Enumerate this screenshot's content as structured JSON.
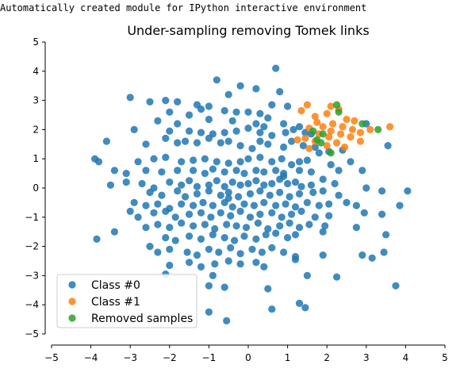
{
  "page": {
    "suptitle": "Automatically created module for IPython interactive environment"
  },
  "chart_data": {
    "type": "scatter",
    "title": "Under-sampling removing Tomek links",
    "xlabel": "",
    "ylabel": "",
    "xlim": [
      -5,
      5
    ],
    "ylim": [
      -5,
      5
    ],
    "xticks": [
      -5,
      -4,
      -3,
      -2,
      -1,
      0,
      1,
      2,
      3,
      4,
      5
    ],
    "yticks": [
      -5,
      -4,
      -3,
      -2,
      -1,
      0,
      1,
      2,
      3,
      4,
      5
    ],
    "xtick_labels": [
      "−5",
      "−4",
      "−3",
      "−2",
      "−1",
      "0",
      "1",
      "2",
      "3",
      "4",
      "5"
    ],
    "ytick_labels": [
      "−5",
      "−4",
      "−3",
      "−2",
      "−1",
      "0",
      "1",
      "2",
      "3",
      "4",
      "5"
    ],
    "grid": false,
    "legend_position": "lower-left",
    "spines": "left-bottom-offset",
    "series": [
      {
        "name": "Class #0",
        "color": "#1f77b4",
        "points": [
          [
            0.7,
            4.1
          ],
          [
            -0.8,
            3.7
          ],
          [
            -0.2,
            3.5
          ],
          [
            0.2,
            3.4
          ],
          [
            -0.5,
            3.2
          ],
          [
            0.8,
            3.3
          ],
          [
            -3,
            3.1
          ],
          [
            -2.5,
            2.95
          ],
          [
            -2.1,
            3.0
          ],
          [
            -1.8,
            2.95
          ],
          [
            -1.3,
            2.85
          ],
          [
            -1.2,
            2.7
          ],
          [
            -1.0,
            2.8
          ],
          [
            -0.6,
            2.65
          ],
          [
            0.0,
            2.6
          ],
          [
            0.3,
            2.55
          ],
          [
            -0.3,
            2.6
          ],
          [
            0.6,
            2.85
          ],
          [
            1.0,
            2.8
          ],
          [
            -2.0,
            2.6
          ],
          [
            -1.5,
            2.5
          ],
          [
            -2.3,
            2.3
          ],
          [
            -1.8,
            2.2
          ],
          [
            -1.0,
            2.35
          ],
          [
            -0.4,
            2.3
          ],
          [
            0.2,
            2.2
          ],
          [
            0.4,
            2.1
          ],
          [
            0.5,
            2.4
          ],
          [
            0.9,
            2.2
          ],
          [
            1.3,
            2.1
          ],
          [
            -2.9,
            2.0
          ],
          [
            -2.0,
            1.95
          ],
          [
            -1.5,
            1.95
          ],
          [
            -1.2,
            1.9
          ],
          [
            -0.9,
            1.85
          ],
          [
            -0.6,
            1.9
          ],
          [
            -0.3,
            1.95
          ],
          [
            0.0,
            2.05
          ],
          [
            0.3,
            1.9
          ],
          [
            0.6,
            1.8
          ],
          [
            0.95,
            1.9
          ],
          [
            1.15,
            2.0
          ],
          [
            1.45,
            1.9
          ],
          [
            1.6,
            1.85
          ],
          [
            3.0,
            2.2
          ],
          [
            3.55,
            1.45
          ],
          [
            -3.6,
            1.6
          ],
          [
            -2.6,
            1.5
          ],
          [
            -2.1,
            1.7
          ],
          [
            -1.8,
            1.55
          ],
          [
            -1.6,
            1.6
          ],
          [
            -1.3,
            1.55
          ],
          [
            -1.0,
            1.7
          ],
          [
            -0.7,
            1.55
          ],
          [
            -0.5,
            1.6
          ],
          [
            -0.2,
            1.45
          ],
          [
            0.1,
            1.35
          ],
          [
            0.3,
            1.6
          ],
          [
            0.5,
            1.5
          ],
          [
            0.9,
            1.4
          ],
          [
            1.1,
            1.6
          ],
          [
            1.4,
            1.45
          ],
          [
            1.7,
            1.4
          ],
          [
            1.8,
            1.2
          ],
          [
            2.05,
            1.25
          ],
          [
            2.4,
            1.3
          ],
          [
            -3.9,
            1.0
          ],
          [
            -3.8,
            0.9
          ],
          [
            -2.8,
            0.9
          ],
          [
            -2.4,
            1.0
          ],
          [
            -2.1,
            1.05
          ],
          [
            -1.7,
            0.9
          ],
          [
            -1.4,
            0.95
          ],
          [
            -1.1,
            1.0
          ],
          [
            -0.8,
            0.9
          ],
          [
            -0.5,
            0.85
          ],
          [
            -0.2,
            0.9
          ],
          [
            0.0,
            1.0
          ],
          [
            0.3,
            1.05
          ],
          [
            0.6,
            0.9
          ],
          [
            0.85,
            1.0
          ],
          [
            1.1,
            0.8
          ],
          [
            1.3,
            0.9
          ],
          [
            1.5,
            0.95
          ],
          [
            2.1,
            0.8
          ],
          [
            2.6,
            0.9
          ],
          [
            -3.4,
            0.6
          ],
          [
            -3.1,
            0.5
          ],
          [
            -2.6,
            0.6
          ],
          [
            -2.2,
            0.55
          ],
          [
            -1.8,
            0.6
          ],
          [
            -1.4,
            0.6
          ],
          [
            -1.1,
            0.5
          ],
          [
            -0.9,
            0.65
          ],
          [
            -0.6,
            0.55
          ],
          [
            -0.3,
            0.6
          ],
          [
            -0.1,
            0.5
          ],
          [
            0.2,
            0.6
          ],
          [
            0.4,
            0.55
          ],
          [
            0.7,
            0.6
          ],
          [
            0.9,
            0.5
          ],
          [
            1.3,
            0.6
          ],
          [
            1.6,
            0.55
          ],
          [
            2.3,
            0.6
          ],
          [
            2.9,
            0.6
          ],
          [
            -3.5,
            0.1
          ],
          [
            -3.1,
            0.2
          ],
          [
            -2.7,
            0.15
          ],
          [
            -2.4,
            0.0
          ],
          [
            -2.0,
            0.2
          ],
          [
            -1.7,
            0.1
          ],
          [
            -1.5,
            0.25
          ],
          [
            -1.3,
            0.05
          ],
          [
            -1.0,
            0.1
          ],
          [
            -0.8,
            0.25
          ],
          [
            -0.6,
            0.05
          ],
          [
            -0.4,
            0.2
          ],
          [
            -0.2,
            0.1
          ],
          [
            0.0,
            0.15
          ],
          [
            0.2,
            0.25
          ],
          [
            0.4,
            0.1
          ],
          [
            0.6,
            0.15
          ],
          [
            0.8,
            0.3
          ],
          [
            1.0,
            0.15
          ],
          [
            1.2,
            0.2
          ],
          [
            1.35,
            0.05
          ],
          [
            1.6,
            0.1
          ],
          [
            1.9,
            0.3
          ],
          [
            2.2,
            0.15
          ],
          [
            -2.5,
            -0.15
          ],
          [
            -2.2,
            -0.25
          ],
          [
            -1.8,
            -0.1
          ],
          [
            -1.6,
            -0.3
          ],
          [
            -1.3,
            -0.2
          ],
          [
            -1.0,
            -0.1
          ],
          [
            -0.7,
            -0.25
          ],
          [
            -0.5,
            -0.15
          ],
          [
            -0.25,
            -0.3
          ],
          [
            0.05,
            -0.2
          ],
          [
            0.3,
            -0.1
          ],
          [
            0.55,
            -0.25
          ],
          [
            0.8,
            -0.15
          ],
          [
            1.05,
            -0.3
          ],
          [
            1.3,
            -0.2
          ],
          [
            1.65,
            -0.15
          ],
          [
            1.9,
            -0.1
          ],
          [
            2.3,
            -0.25
          ],
          [
            3.0,
            0.0
          ],
          [
            3.4,
            -0.1
          ],
          [
            4.05,
            -0.1
          ],
          [
            -2.9,
            -0.5
          ],
          [
            -2.6,
            -0.6
          ],
          [
            -2.3,
            -0.55
          ],
          [
            -2.0,
            -0.7
          ],
          [
            -1.7,
            -0.55
          ],
          [
            -1.4,
            -0.6
          ],
          [
            -1.15,
            -0.5
          ],
          [
            -0.9,
            -0.6
          ],
          [
            -0.6,
            -0.5
          ],
          [
            -0.4,
            -0.65
          ],
          [
            -0.1,
            -0.55
          ],
          [
            0.15,
            -0.6
          ],
          [
            0.4,
            -0.5
          ],
          [
            0.7,
            -0.6
          ],
          [
            0.95,
            -0.55
          ],
          [
            1.2,
            -0.65
          ],
          [
            1.5,
            -0.5
          ],
          [
            1.8,
            -0.6
          ],
          [
            2.05,
            -0.55
          ],
          [
            2.5,
            -0.5
          ],
          [
            2.75,
            -0.6
          ],
          [
            3.85,
            -0.6
          ],
          [
            -3.0,
            -0.8
          ],
          [
            -2.8,
            -1.0
          ],
          [
            -2.4,
            -0.85
          ],
          [
            -2.1,
            -0.8
          ],
          [
            -1.85,
            -1.0
          ],
          [
            -1.5,
            -0.9
          ],
          [
            -1.2,
            -0.85
          ],
          [
            -0.95,
            -1.0
          ],
          [
            -0.7,
            -0.85
          ],
          [
            -0.45,
            -0.95
          ],
          [
            -0.2,
            -0.8
          ],
          [
            0.05,
            -1.0
          ],
          [
            0.3,
            -0.9
          ],
          [
            0.6,
            -0.85
          ],
          [
            0.85,
            -1.0
          ],
          [
            1.1,
            -0.9
          ],
          [
            1.35,
            -0.8
          ],
          [
            1.7,
            -1.0
          ],
          [
            2.05,
            -0.95
          ],
          [
            2.95,
            -0.85
          ],
          [
            3.4,
            -0.9
          ],
          [
            -3.85,
            -1.75
          ],
          [
            -3.4,
            -1.5
          ],
          [
            -2.6,
            -1.35
          ],
          [
            -2.3,
            -1.25
          ],
          [
            -2.0,
            -1.35
          ],
          [
            -1.7,
            -1.2
          ],
          [
            -1.4,
            -1.3
          ],
          [
            -1.1,
            -1.25
          ],
          [
            -0.85,
            -1.4
          ],
          [
            -0.55,
            -1.25
          ],
          [
            -0.3,
            -1.3
          ],
          [
            -0.05,
            -1.35
          ],
          [
            0.25,
            -1.2
          ],
          [
            0.5,
            -1.4
          ],
          [
            0.8,
            -1.3
          ],
          [
            1.05,
            -1.2
          ],
          [
            1.3,
            -1.35
          ],
          [
            1.55,
            -1.25
          ],
          [
            1.95,
            -1.3
          ],
          [
            2.75,
            -1.35
          ],
          [
            -2.1,
            -1.7
          ],
          [
            -1.85,
            -1.8
          ],
          [
            -1.5,
            -1.65
          ],
          [
            -1.2,
            -1.75
          ],
          [
            -0.9,
            -1.6
          ],
          [
            -0.6,
            -1.7
          ],
          [
            -0.35,
            -1.8
          ],
          [
            -0.1,
            -1.65
          ],
          [
            0.2,
            -1.75
          ],
          [
            0.45,
            -1.6
          ],
          [
            0.7,
            -1.55
          ],
          [
            1.0,
            -1.7
          ],
          [
            1.2,
            -1.6
          ],
          [
            1.9,
            -1.5
          ],
          [
            3.5,
            -1.6
          ],
          [
            -2.5,
            -2.0
          ],
          [
            -2.3,
            -2.2
          ],
          [
            -2.0,
            -2.1
          ],
          [
            -1.55,
            -2.2
          ],
          [
            -1.3,
            -2.3
          ],
          [
            -1.0,
            -2.1
          ],
          [
            -0.75,
            -2.2
          ],
          [
            -0.45,
            -2.05
          ],
          [
            -0.2,
            -2.25
          ],
          [
            0.1,
            -2.1
          ],
          [
            0.35,
            -2.2
          ],
          [
            0.6,
            -2.05
          ],
          [
            0.9,
            -2.2
          ],
          [
            1.2,
            -2.35
          ],
          [
            1.9,
            -2.3
          ],
          [
            2.9,
            -2.3
          ],
          [
            3.15,
            -2.4
          ],
          [
            3.45,
            -2.2
          ],
          [
            -2.0,
            -2.65
          ],
          [
            -1.5,
            -2.55
          ],
          [
            -1.2,
            -2.7
          ],
          [
            -0.85,
            -2.6
          ],
          [
            -0.5,
            -2.5
          ],
          [
            -0.2,
            -2.6
          ],
          [
            0.2,
            -2.55
          ],
          [
            0.4,
            -2.7
          ],
          [
            1.2,
            -2.45
          ],
          [
            -2.1,
            -2.95
          ],
          [
            -0.9,
            -3.0
          ],
          [
            1.5,
            -3.0
          ],
          [
            2.25,
            -3.05
          ],
          [
            -1.0,
            -3.35
          ],
          [
            -0.6,
            -3.4
          ],
          [
            0.5,
            -3.45
          ],
          [
            3.75,
            -3.35
          ],
          [
            1.3,
            -3.95
          ],
          [
            1.45,
            -4.1
          ],
          [
            -1.0,
            -4.25
          ],
          [
            -0.55,
            -4.55
          ],
          [
            0.6,
            -4.15
          ],
          [
            -0.5,
            -0.35
          ],
          [
            0.9,
            0.4
          ]
        ]
      },
      {
        "name": "Class #1",
        "color": "#ff7f0e",
        "points": [
          [
            1.5,
            2.85
          ],
          [
            1.35,
            2.65
          ],
          [
            1.7,
            2.45
          ],
          [
            2.0,
            2.55
          ],
          [
            2.1,
            2.8
          ],
          [
            2.3,
            2.7
          ],
          [
            2.5,
            2.35
          ],
          [
            2.7,
            2.3
          ],
          [
            2.4,
            2.1
          ],
          [
            2.15,
            2.2
          ],
          [
            1.9,
            2.1
          ],
          [
            1.75,
            2.25
          ],
          [
            1.55,
            2.05
          ],
          [
            1.8,
            1.85
          ],
          [
            2.05,
            1.75
          ],
          [
            2.35,
            1.85
          ],
          [
            2.6,
            1.75
          ],
          [
            2.85,
            1.9
          ],
          [
            3.1,
            2.0
          ],
          [
            3.6,
            2.1
          ],
          [
            2.25,
            1.55
          ],
          [
            2.0,
            1.45
          ],
          [
            1.7,
            1.6
          ],
          [
            1.45,
            1.7
          ],
          [
            2.45,
            1.4
          ],
          [
            2.85,
            1.6
          ],
          [
            2.65,
            2.0
          ],
          [
            1.25,
            1.65
          ],
          [
            1.55,
            1.35
          ],
          [
            2.1,
            1.95
          ]
        ]
      },
      {
        "name": "Removed samples",
        "color": "#2ca02c",
        "points": [
          [
            2.25,
            2.85
          ],
          [
            2.3,
            2.6
          ],
          [
            1.65,
            1.95
          ],
          [
            1.9,
            1.85
          ],
          [
            1.85,
            1.55
          ],
          [
            2.1,
            1.2
          ],
          [
            3.3,
            2.0
          ],
          [
            2.9,
            2.2
          ],
          [
            1.75,
            1.65
          ]
        ]
      }
    ]
  }
}
